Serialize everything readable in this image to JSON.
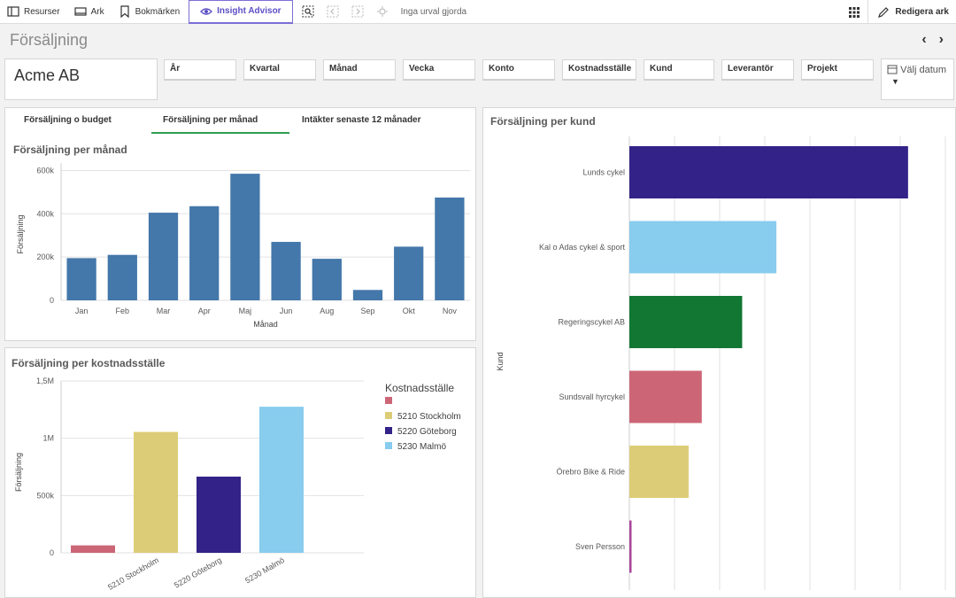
{
  "toolbar": {
    "resources": "Resurser",
    "sheets": "Ark",
    "bookmarks": "Bokmärken",
    "insight": "Insight Advisor",
    "no_selection": "Inga urval gjorda",
    "edit": "Redigera ark"
  },
  "sheet": {
    "title": "Försäljning"
  },
  "company": "Acme AB",
  "filters": [
    "År",
    "Kvartal",
    "Månad",
    "Vecka",
    "Konto",
    "Kostnadsställe",
    "Kund",
    "Leverantör",
    "Projekt"
  ],
  "date_picker": "Välj datum",
  "tabs": [
    "Försäljning o budget",
    "Försäljning per månad",
    "Intäkter senaste 12 månader"
  ],
  "colors": {
    "accent_green": "#2f9d4f",
    "insight_purple": "#7b6fd6"
  },
  "chart_data": [
    {
      "type": "bar",
      "title": "Försäljning per månad",
      "xlabel": "Månad",
      "ylabel": "Försäljning",
      "categories": [
        "Jan",
        "Feb",
        "Mar",
        "Apr",
        "Maj",
        "Jun",
        "Aug",
        "Sep",
        "Okt",
        "Nov"
      ],
      "values": [
        195000,
        210000,
        405000,
        435000,
        585000,
        270000,
        192000,
        48000,
        248000,
        475000
      ],
      "yticks": [
        0,
        200000,
        400000,
        600000
      ],
      "ytick_labels": [
        "0",
        "200k",
        "400k",
        "600k"
      ],
      "ylim": [
        0,
        610000
      ],
      "color": "#4477aa",
      "grid": true
    },
    {
      "type": "bar",
      "title": "Försäljning per kostnadsställe",
      "ylabel": "Försäljning",
      "legend_title": "Kostnadsställe",
      "legend_position": "right",
      "categories": [
        "",
        "5210 Stockholm",
        "5220 Göteborg",
        "5230 Malmö"
      ],
      "values": [
        65000,
        1055000,
        665000,
        1275000
      ],
      "colors": [
        "#cc6677",
        "#ddcc77",
        "#332288",
        "#88ccee"
      ],
      "yticks": [
        0,
        500000,
        1000000,
        1500000
      ],
      "ytick_labels": [
        "0",
        "500k",
        "1M",
        "1,5M"
      ],
      "ylim": [
        0,
        1500000
      ],
      "grid": true
    },
    {
      "type": "bar",
      "orientation": "horizontal",
      "title": "Försäljning per kund",
      "ylabel": "Kund",
      "categories": [
        "Lunds cykel",
        "Kal o Adas cykel & sport",
        "Regeringscykel AB",
        "Sundsvall hyrcykel",
        "Örebro Bike & Ride",
        "Sven Persson"
      ],
      "values": [
        635000,
        335000,
        257000,
        165000,
        135000,
        5000
      ],
      "colors": [
        "#332288",
        "#88ccee",
        "#117733",
        "#cc6677",
        "#ddcc77",
        "#aa4499"
      ],
      "xlim": [
        0,
        720000
      ],
      "grid": true
    }
  ]
}
